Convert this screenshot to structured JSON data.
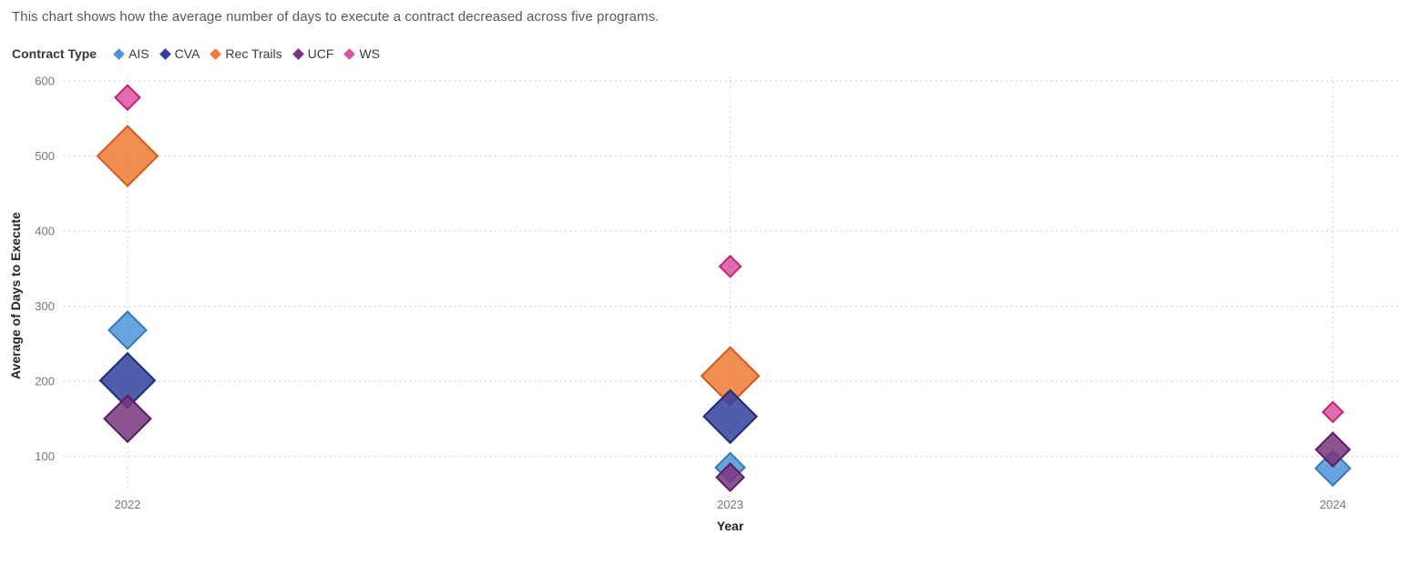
{
  "chart_data": {
    "type": "scatter",
    "title": "This chart shows how the average number of days to execute a contract decreased across five programs.",
    "legend_title": "Contract Type",
    "legend_position": "top-left",
    "marker_shape": "diamond",
    "xlabel": "Year",
    "ylabel": "Average of Days to Execute",
    "x_categories": [
      2022,
      2023,
      2024
    ],
    "y_ticks": [
      100,
      200,
      300,
      400,
      500,
      600
    ],
    "grid": "dotted",
    "series": [
      {
        "name": "AIS",
        "fill": "#4E95D9",
        "stroke": "#3579B8",
        "points": [
          {
            "year": 2022,
            "value": 268,
            "size": 41
          },
          {
            "year": 2023,
            "value": 85,
            "size": 32
          },
          {
            "year": 2024,
            "value": 84,
            "size": 38
          }
        ]
      },
      {
        "name": "CVA",
        "fill": "#333F9B",
        "stroke": "#1E2A78",
        "points": [
          {
            "year": 2022,
            "value": 201,
            "size": 60
          },
          {
            "year": 2023,
            "value": 153,
            "size": 58
          }
        ]
      },
      {
        "name": "Rec Trails",
        "fill": "#EE7B35",
        "stroke": "#D2591C",
        "points": [
          {
            "year": 2022,
            "value": 500,
            "size": 66
          },
          {
            "year": 2023,
            "value": 207,
            "size": 63
          }
        ]
      },
      {
        "name": "UCF",
        "fill": "#79347F",
        "stroke": "#571E61",
        "points": [
          {
            "year": 2022,
            "value": 150,
            "size": 51
          },
          {
            "year": 2023,
            "value": 72,
            "size": 30
          },
          {
            "year": 2024,
            "value": 109,
            "size": 37
          }
        ]
      },
      {
        "name": "WS",
        "fill": "#DC549F",
        "stroke": "#BE2577",
        "points": [
          {
            "year": 2022,
            "value": 578,
            "size": 27
          },
          {
            "year": 2023,
            "value": 353,
            "size": 23
          },
          {
            "year": 2024,
            "value": 159,
            "size": 22
          }
        ]
      }
    ],
    "z_order": [
      "WS",
      "Rec Trails",
      "AIS",
      "CVA",
      "UCF"
    ]
  }
}
